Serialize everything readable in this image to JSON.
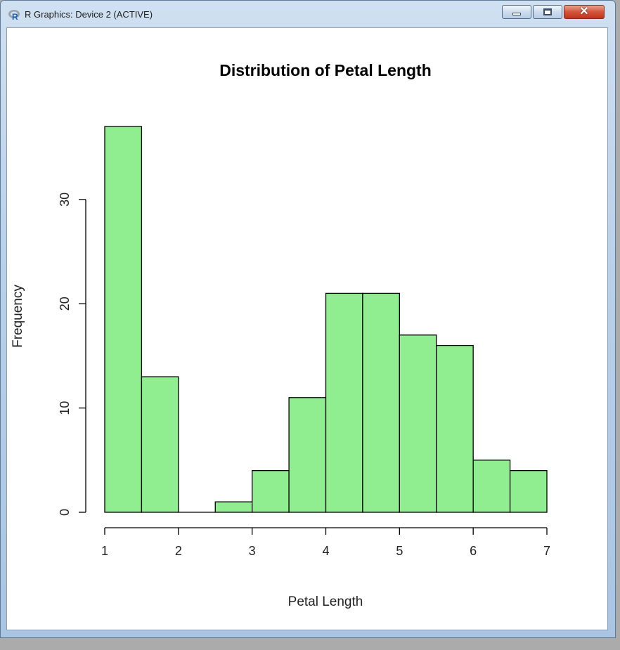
{
  "window": {
    "title": "R Graphics: Device 2 (ACTIVE)",
    "icon": "r-logo-icon",
    "controls": [
      "minimize-icon",
      "maximize-icon",
      "close-icon"
    ]
  },
  "colors": {
    "bar_fill": "#90ee90",
    "bar_stroke": "#000000",
    "title_bar": "#b9d1ea",
    "close_button": "#c2341b"
  },
  "chart_data": {
    "type": "bar",
    "title": "Distribution of Petal Length",
    "xlabel": "Petal Length",
    "ylabel": "Frequency",
    "bins": [
      [
        1.0,
        1.5
      ],
      [
        1.5,
        2.0
      ],
      [
        2.0,
        2.5
      ],
      [
        2.5,
        3.0
      ],
      [
        3.0,
        3.5
      ],
      [
        3.5,
        4.0
      ],
      [
        4.0,
        4.5
      ],
      [
        4.5,
        5.0
      ],
      [
        5.0,
        5.5
      ],
      [
        5.5,
        6.0
      ],
      [
        6.0,
        6.5
      ],
      [
        6.5,
        7.0
      ]
    ],
    "values": [
      37,
      13,
      0,
      1,
      4,
      11,
      21,
      21,
      17,
      16,
      5,
      4
    ],
    "xlim": [
      1,
      7
    ],
    "ylim": [
      0,
      37
    ],
    "xticks": [
      1,
      2,
      3,
      4,
      5,
      6,
      7
    ],
    "yticks": [
      0,
      10,
      20,
      30
    ],
    "grid": false,
    "legend": "none"
  }
}
